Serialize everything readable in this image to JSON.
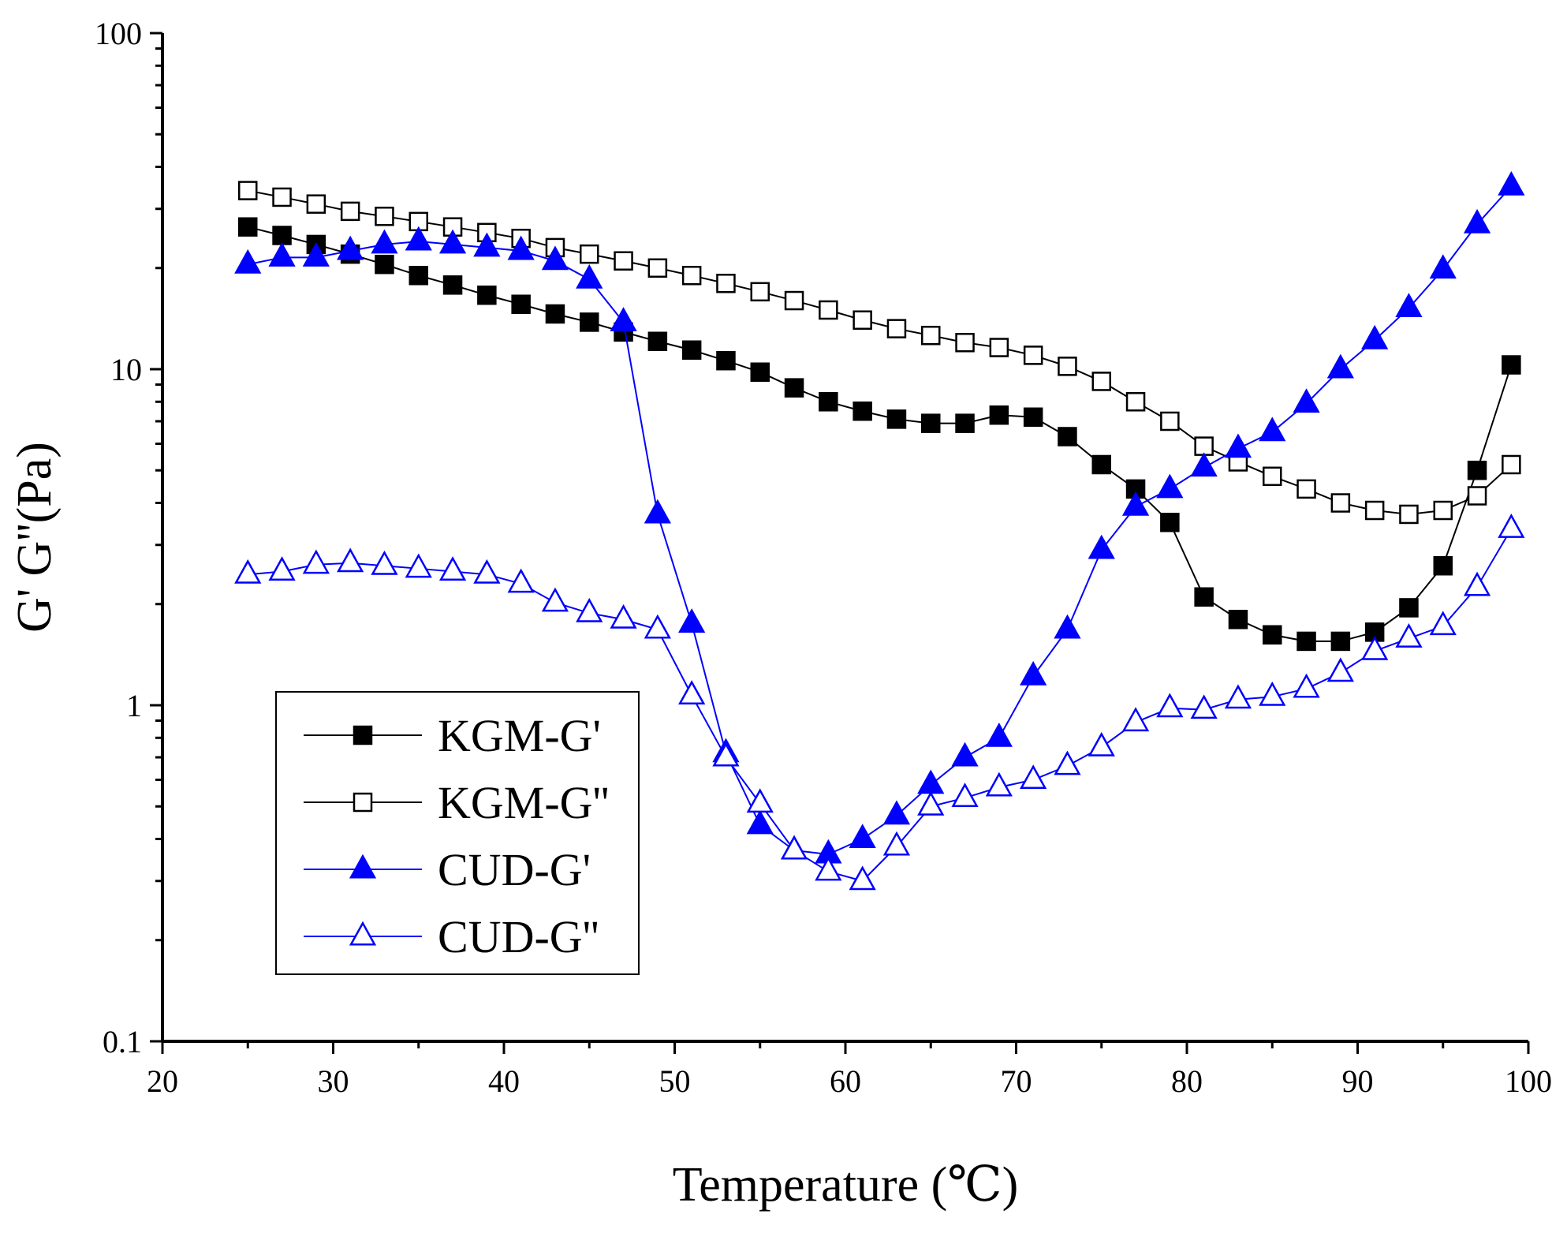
{
  "chart_data": {
    "type": "line",
    "xlabel": "Temperature (℃)",
    "ylabel": "G' G''(Pa)",
    "xlim": [
      20,
      100
    ],
    "ylim": [
      0.1,
      100
    ],
    "yscale": "log",
    "xticks": [
      "20",
      "30",
      "40",
      "50",
      "60",
      "70",
      "80",
      "90",
      "100"
    ],
    "yticks": [
      "0.1",
      "1",
      "10",
      "100"
    ],
    "grid": false,
    "legend_position": "bottom-left",
    "x": [
      25,
      27,
      29,
      31,
      33,
      35,
      37,
      39,
      41,
      43,
      45,
      47,
      49,
      51,
      53,
      55,
      57,
      59,
      61,
      63,
      65,
      67,
      69,
      71,
      73,
      75,
      77,
      79,
      81,
      83,
      85,
      87,
      89,
      91,
      93,
      95,
      97,
      99
    ],
    "series": [
      {
        "name": "KGM-G'",
        "color": "#000000",
        "marker": "square-filled",
        "values": [
          26.5,
          25,
          23.5,
          22,
          20.5,
          19,
          17.8,
          16.6,
          15.6,
          14.6,
          13.8,
          12.9,
          12.1,
          11.4,
          10.6,
          9.8,
          8.8,
          8.0,
          7.5,
          7.1,
          6.9,
          6.9,
          7.3,
          7.2,
          6.3,
          5.2,
          4.4,
          3.5,
          2.1,
          1.8,
          1.62,
          1.55,
          1.55,
          1.65,
          1.95,
          2.6,
          5.0,
          10.3
        ]
      },
      {
        "name": "KGM-G''",
        "color": "#000000",
        "marker": "square-open",
        "values": [
          34,
          32.5,
          31,
          29.5,
          28.5,
          27.5,
          26.5,
          25.5,
          24.5,
          23,
          22,
          21,
          20,
          19,
          18,
          17,
          16,
          15,
          14,
          13.2,
          12.6,
          12,
          11.6,
          11,
          10.2,
          9.2,
          8.0,
          7.0,
          5.9,
          5.3,
          4.8,
          4.4,
          4.0,
          3.8,
          3.7,
          3.8,
          4.2,
          5.2
        ]
      },
      {
        "name": "CUD-G'",
        "color": "#0000ff",
        "marker": "triangle-filled",
        "values": [
          20.5,
          21.5,
          21.5,
          22.5,
          23.5,
          24,
          23.5,
          23,
          22.5,
          21,
          18.5,
          13.8,
          3.7,
          1.75,
          0.72,
          0.44,
          0.37,
          0.36,
          0.4,
          0.47,
          0.58,
          0.7,
          0.8,
          1.22,
          1.68,
          2.9,
          3.9,
          4.4,
          5.1,
          5.8,
          6.5,
          7.9,
          10,
          12.2,
          15.2,
          19.8,
          27,
          35
        ]
      },
      {
        "name": "CUD-G''",
        "color": "#0000ff",
        "marker": "triangle-open",
        "values": [
          2.45,
          2.5,
          2.62,
          2.65,
          2.6,
          2.55,
          2.5,
          2.45,
          2.3,
          2.02,
          1.88,
          1.8,
          1.68,
          1.07,
          0.7,
          0.51,
          0.37,
          0.32,
          0.3,
          0.38,
          0.5,
          0.53,
          0.57,
          0.6,
          0.66,
          0.75,
          0.89,
          0.98,
          0.97,
          1.04,
          1.06,
          1.12,
          1.25,
          1.45,
          1.58,
          1.72,
          2.25,
          3.35
        ]
      }
    ]
  }
}
